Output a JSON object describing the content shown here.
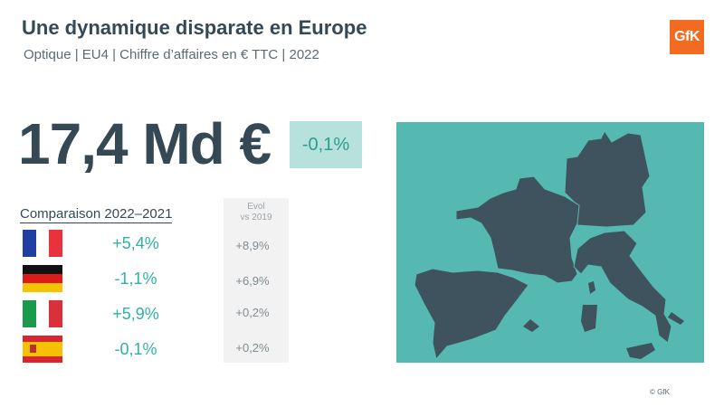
{
  "header": {
    "title": "Une dynamique disparate en Europe",
    "subtitle": "Optique | EU4 | Chiffre d’affaires en € TTC | 2022"
  },
  "logo": {
    "text": "GfK",
    "color": "#f26b21"
  },
  "summary": {
    "total_value": "17,4 Md €",
    "total_change": "-0,1%"
  },
  "comparison": {
    "label": "Comparaison 2022–2021",
    "evol_header_line1": "Evol",
    "evol_header_line2": "vs 2019",
    "rows": [
      {
        "country_flag": "france-flag-icon",
        "change": "+5,4%",
        "evol_vs_2019": "+8,9%"
      },
      {
        "country_flag": "germany-flag-icon",
        "change": "-1,1%",
        "evol_vs_2019": "+6,9%"
      },
      {
        "country_flag": "italy-flag-icon",
        "change": "+5,9%",
        "evol_vs_2019": "+0,2%"
      },
      {
        "country_flag": "spain-flag-icon",
        "change": "-0,1%",
        "evol_vs_2019": "+0,2%"
      }
    ]
  },
  "map": {
    "background_color": "#55b9b1",
    "country_color": "#3e535d"
  },
  "footer": {
    "copyright": "© GfK"
  },
  "colors": {
    "accent_teal": "#2fb1a4",
    "badge_bg": "#b6e1dc",
    "title": "#354955"
  }
}
